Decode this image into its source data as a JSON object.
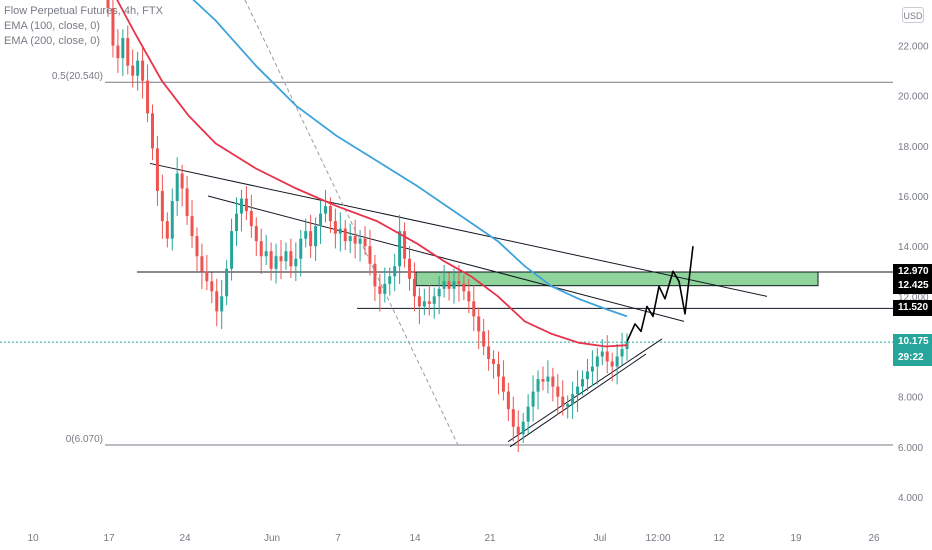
{
  "legend": {
    "symbol": "Flow Perpetual Futures, 4h, FTX",
    "ema100": "EMA (100, close, 0)",
    "ema200": "EMA (200, close, 0)"
  },
  "currency_badge": "USD",
  "colors": {
    "up": "#26a69a",
    "down": "#ef5350",
    "ema100": "#e8334a",
    "ema200": "#3ea3dc",
    "zone": "#8ed49b",
    "line": "#131722"
  },
  "chart_data": {
    "type": "candlestick",
    "y_ticks": [
      "22.000",
      "20.000",
      "18.000",
      "16.000",
      "14.000",
      "12.000",
      "10.000",
      "8.000",
      "6.000",
      "4.000"
    ],
    "x_ticks": [
      "10",
      "17",
      "24",
      "Jun",
      "7",
      "14",
      "21",
      "Jul",
      "12:00",
      "12",
      "19",
      "26"
    ],
    "ylim": [
      3.0,
      23.3
    ],
    "price_tags": [
      {
        "label": "12.970",
        "value": 12.97,
        "style": "black"
      },
      {
        "label": "12.425",
        "value": 12.425,
        "style": "black"
      },
      {
        "label": "11.520",
        "value": 11.52,
        "style": "black"
      },
      {
        "label": "10.175",
        "value": 10.175,
        "style": "teal"
      },
      {
        "label": "29:22",
        "value": 9.55,
        "style": "teal"
      }
    ],
    "fib_levels": [
      {
        "label": "0.5(20.540)",
        "value": 20.54
      },
      {
        "label": "0(6.070)",
        "value": 6.07
      }
    ],
    "current_price": 10.175,
    "horizontal_levels": [
      12.97,
      11.52
    ],
    "ema100": [
      [
        0,
        24.5
      ],
      [
        10,
        22.5
      ],
      [
        20,
        20.6
      ],
      [
        30,
        19.2
      ],
      [
        40,
        18.1
      ],
      [
        55,
        17.1
      ],
      [
        70,
        16.3
      ],
      [
        85,
        15.6
      ],
      [
        100,
        15.0
      ],
      [
        115,
        14.1
      ],
      [
        125,
        13.4
      ],
      [
        135,
        12.8
      ],
      [
        145,
        12.0
      ],
      [
        155,
        11.0
      ],
      [
        165,
        10.5
      ],
      [
        175,
        10.15
      ],
      [
        185,
        10.0
      ],
      [
        193,
        10.05
      ]
    ],
    "ema200": [
      [
        25,
        24.5
      ],
      [
        40,
        23.0
      ],
      [
        55,
        21.2
      ],
      [
        70,
        19.6
      ],
      [
        85,
        18.4
      ],
      [
        100,
        17.4
      ],
      [
        115,
        16.4
      ],
      [
        130,
        15.3
      ],
      [
        145,
        14.2
      ],
      [
        155,
        13.2
      ],
      [
        165,
        12.4
      ],
      [
        175,
        11.9
      ],
      [
        185,
        11.5
      ],
      [
        193,
        11.2
      ]
    ],
    "candles_close": [
      23.5,
      22.0,
      21.5,
      22.3,
      21.2,
      20.8,
      21.4,
      20.6,
      19.3,
      17.9,
      16.2,
      15.0,
      14.3,
      15.8,
      16.9,
      16.3,
      15.2,
      14.4,
      13.6,
      13.0,
      12.6,
      12.2,
      11.4,
      12.0,
      13.1,
      14.6,
      15.3,
      15.9,
      15.4,
      14.8,
      14.2,
      13.6,
      13.8,
      13.1,
      13.6,
      13.4,
      13.8,
      13.2,
      13.5,
      14.3,
      14.6,
      14.0,
      14.8,
      15.3,
      15.6,
      15.0,
      14.5,
      14.7,
      14.2,
      14.4,
      14.1,
      14.3,
      14.0,
      13.3,
      12.4,
      12.1,
      12.5,
      12.8,
      13.2,
      14.6,
      13.5,
      12.7,
      12.0,
      11.6,
      11.8,
      11.7,
      12.0,
      12.3,
      12.6,
      12.3,
      12.6,
      12.5,
      12.2,
      11.8,
      11.2,
      10.6,
      10.0,
      9.5,
      9.3,
      8.8,
      8.2,
      7.5,
      6.8,
      6.5,
      7.0,
      7.6,
      8.2,
      8.7,
      8.6,
      8.8,
      8.4,
      8.0,
      7.6,
      7.7,
      8.1,
      8.4,
      8.7,
      9.0,
      9.2,
      9.6,
      9.8,
      9.4,
      9.2,
      9.6,
      9.9,
      10.175
    ],
    "projection": [
      [
        0,
        10.2
      ],
      [
        4,
        10.9
      ],
      [
        7,
        10.6
      ],
      [
        10,
        11.6
      ],
      [
        13,
        11.2
      ],
      [
        16,
        12.4
      ],
      [
        19,
        11.9
      ],
      [
        23,
        13.0
      ],
      [
        26,
        12.6
      ],
      [
        29,
        11.3
      ],
      [
        33,
        14.0
      ]
    ]
  }
}
